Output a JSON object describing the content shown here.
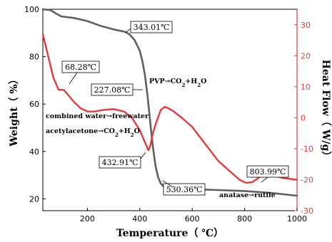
{
  "chart_data": {
    "type": "line",
    "xlabel": "Temperature（ ℃）",
    "ylabel_left": "Weight（ %）",
    "ylabel_right": "Heat Flow（ W/g）",
    "xlim": [
      30,
      1000
    ],
    "ylim_left": [
      15,
      100
    ],
    "ylim_right": [
      -30,
      35
    ],
    "x_ticks": [
      200,
      400,
      600,
      800,
      1000
    ],
    "left_ticks": [
      20,
      40,
      60,
      80,
      100
    ],
    "right_ticks": [
      -30,
      -20,
      -10,
      0,
      10,
      20,
      30
    ],
    "series": [
      {
        "axis": "left",
        "color": "#5f5f5f",
        "x": [
          30,
          60,
          80,
          100,
          150,
          200,
          250,
          300,
          343,
          360,
          380,
          400,
          410,
          420,
          430,
          440,
          450,
          460,
          470,
          480,
          490,
          510,
          530,
          560,
          600,
          650,
          700,
          800,
          900,
          1000
        ],
        "y": [
          100,
          99.6,
          98.2,
          97,
          96.3,
          95,
          93,
          91.5,
          90.5,
          89.5,
          87,
          82.5,
          78,
          72,
          63,
          52,
          42,
          34,
          29,
          26.5,
          25.3,
          24.8,
          24.5,
          24.3,
          24.1,
          23.9,
          23.7,
          23.3,
          22.5,
          21.3
        ]
      },
      {
        "axis": "right",
        "color": "#e8393a",
        "x": [
          30,
          50,
          70,
          90,
          110,
          130,
          150,
          175,
          200,
          227,
          260,
          300,
          340,
          370,
          400,
          420,
          433,
          440,
          450,
          465,
          480,
          495,
          510,
          530,
          560,
          600,
          650,
          700,
          740,
          780,
          804,
          830,
          860,
          900,
          950,
          1000
        ],
        "y": [
          27,
          20,
          13,
          9,
          9,
          7,
          5,
          3,
          2,
          2,
          2.5,
          2.8,
          2,
          0,
          -4,
          -8,
          -10.5,
          -9,
          -5,
          -1,
          2.5,
          3.5,
          3,
          2,
          0,
          -3,
          -8.5,
          -14,
          -17,
          -20,
          -21,
          -20.8,
          -19,
          -18.5,
          -19.5,
          -20
        ]
      }
    ],
    "callouts": [
      {
        "text": "343.01℃"
      },
      {
        "text": "68.28℃"
      },
      {
        "text": "227.08℃"
      },
      {
        "text": "432.91℃"
      },
      {
        "text": "530.36℃"
      },
      {
        "text": "803.99℃"
      }
    ],
    "annotations": [
      {
        "text": "PVP→CO"
      },
      {
        "text": "combined water→freewater"
      },
      {
        "text": "acetylacetone→CO"
      },
      {
        "text": "anatase→rutile"
      }
    ],
    "colors": {
      "weight": "#5f5f5f",
      "heat_flow": "#e8393a",
      "right_axis": "#e8393a"
    }
  }
}
